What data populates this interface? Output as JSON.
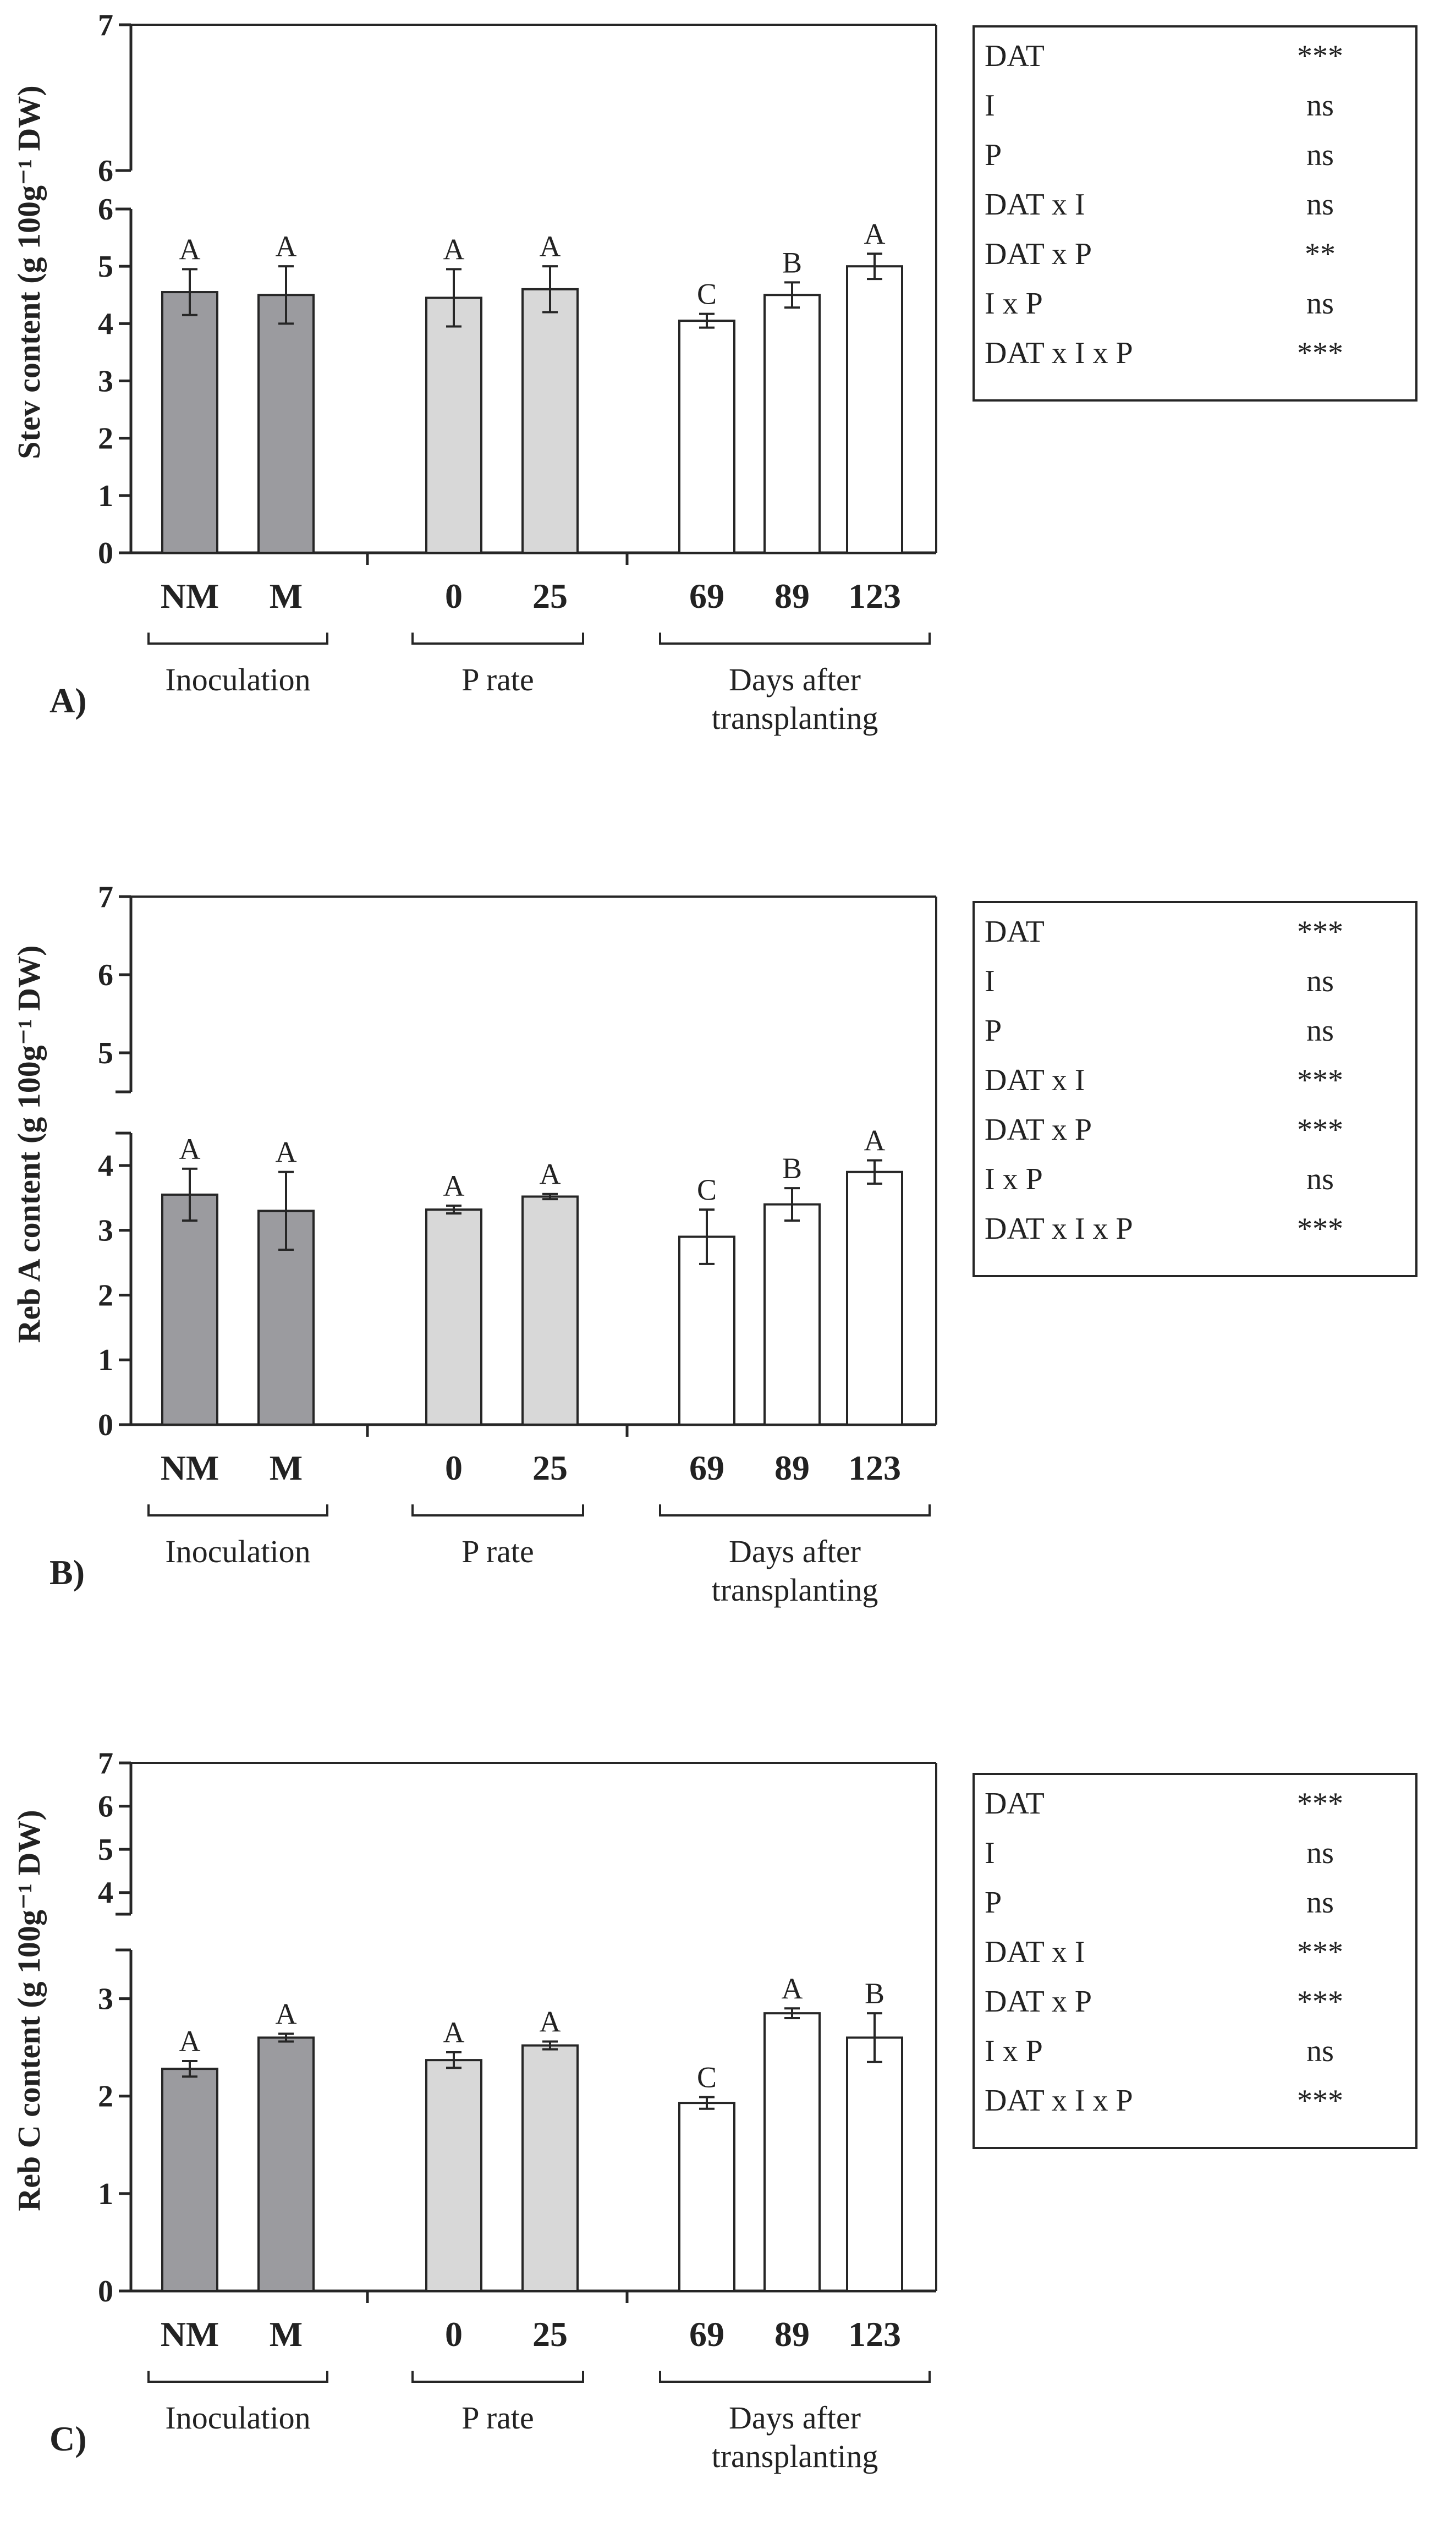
{
  "colors": {
    "inoculation": "#9b9b9f",
    "p_rate": "#d8d8d8",
    "days": "#ffffff",
    "stroke": "#262626",
    "text": "#222222"
  },
  "chart_data": [
    {
      "type": "bar",
      "panel": "A)",
      "ylabel": "Stev content (g 100g⁻¹ DW)",
      "ylim": [
        0,
        7
      ],
      "axis_break": [
        6,
        6
      ],
      "yticks": [
        "0",
        "1",
        "2",
        "3",
        "4",
        "5",
        "6",
        "6",
        "7"
      ],
      "groups": [
        {
          "label": "Inoculation",
          "categories": [
            "NM",
            "M"
          ],
          "values": [
            4.55,
            4.5
          ],
          "errors": [
            0.4,
            0.5
          ],
          "letters": [
            "A",
            "A"
          ],
          "color_key": "inoculation"
        },
        {
          "label": "P rate",
          "categories": [
            "0",
            "25"
          ],
          "values": [
            4.45,
            4.6
          ],
          "errors": [
            0.5,
            0.4
          ],
          "letters": [
            "A",
            "A"
          ],
          "color_key": "p_rate"
        },
        {
          "label": "Days after transplanting",
          "categories": [
            "69",
            "89",
            "123"
          ],
          "values": [
            4.05,
            4.5,
            5.0
          ],
          "errors": [
            0.12,
            0.22,
            0.22
          ],
          "letters": [
            "C",
            "B",
            "A"
          ],
          "color_key": "days"
        }
      ],
      "significance": [
        {
          "term": "DAT",
          "sig": "***"
        },
        {
          "term": "I",
          "sig": "ns"
        },
        {
          "term": "P",
          "sig": "ns"
        },
        {
          "term": "DAT x I",
          "sig": "ns"
        },
        {
          "term": "DAT x P",
          "sig": "**"
        },
        {
          "term": "I x P",
          "sig": "ns"
        },
        {
          "term": "DAT x I x P",
          "sig": "***"
        }
      ]
    },
    {
      "type": "bar",
      "panel": "B)",
      "ylabel": "Reb A content (g 100g⁻¹ DW)",
      "ylim": [
        0,
        7
      ],
      "axis_break": [
        4.5,
        4.5
      ],
      "yticks": [
        "0",
        "1",
        "2",
        "3",
        "4",
        "5",
        "6",
        "7"
      ],
      "groups": [
        {
          "label": "Inoculation",
          "categories": [
            "NM",
            "M"
          ],
          "values": [
            3.55,
            3.3
          ],
          "errors": [
            0.4,
            0.6
          ],
          "letters": [
            "A",
            "A"
          ],
          "color_key": "inoculation"
        },
        {
          "label": "P rate",
          "categories": [
            "0",
            "25"
          ],
          "values": [
            3.32,
            3.52
          ],
          "errors": [
            0.06,
            0.04
          ],
          "letters": [
            "A",
            "A"
          ],
          "color_key": "p_rate"
        },
        {
          "label": "Days after transplanting",
          "categories": [
            "69",
            "89",
            "123"
          ],
          "values": [
            2.9,
            3.4,
            3.9
          ],
          "errors": [
            0.42,
            0.25,
            0.18
          ],
          "letters": [
            "C",
            "B",
            "A"
          ],
          "color_key": "days"
        }
      ],
      "significance": [
        {
          "term": "DAT",
          "sig": "***"
        },
        {
          "term": "I",
          "sig": "ns"
        },
        {
          "term": "P",
          "sig": "ns"
        },
        {
          "term": "DAT x I",
          "sig": "***"
        },
        {
          "term": "DAT x P",
          "sig": "***"
        },
        {
          "term": "I x P",
          "sig": "ns"
        },
        {
          "term": "DAT x I x P",
          "sig": "***"
        }
      ]
    },
    {
      "type": "bar",
      "panel": "C)",
      "ylabel": "Reb C content (g 100g⁻¹ DW)",
      "ylim": [
        0,
        7
      ],
      "axis_break": [
        3.5,
        3.5
      ],
      "yticks": [
        "0",
        "1",
        "2",
        "3",
        "4",
        "5",
        "6",
        "7"
      ],
      "groups": [
        {
          "label": "Inoculation",
          "categories": [
            "NM",
            "M"
          ],
          "values": [
            2.28,
            2.6
          ],
          "errors": [
            0.08,
            0.04
          ],
          "letters": [
            "A",
            "A"
          ],
          "color_key": "inoculation"
        },
        {
          "label": "P rate",
          "categories": [
            "0",
            "25"
          ],
          "values": [
            2.37,
            2.52
          ],
          "errors": [
            0.08,
            0.04
          ],
          "letters": [
            "A",
            "A"
          ],
          "color_key": "p_rate"
        },
        {
          "label": "Days after transplanting",
          "categories": [
            "69",
            "89",
            "123"
          ],
          "values": [
            1.93,
            2.85,
            2.6
          ],
          "errors": [
            0.06,
            0.05,
            0.25
          ],
          "letters": [
            "C",
            "A",
            "B"
          ],
          "color_key": "days"
        }
      ],
      "significance": [
        {
          "term": "DAT",
          "sig": "***"
        },
        {
          "term": "I",
          "sig": "ns"
        },
        {
          "term": "P",
          "sig": "ns"
        },
        {
          "term": "DAT x I",
          "sig": "***"
        },
        {
          "term": "DAT x P",
          "sig": "***"
        },
        {
          "term": "I x P",
          "sig": "ns"
        },
        {
          "term": "DAT x I x P",
          "sig": "***"
        }
      ]
    }
  ]
}
